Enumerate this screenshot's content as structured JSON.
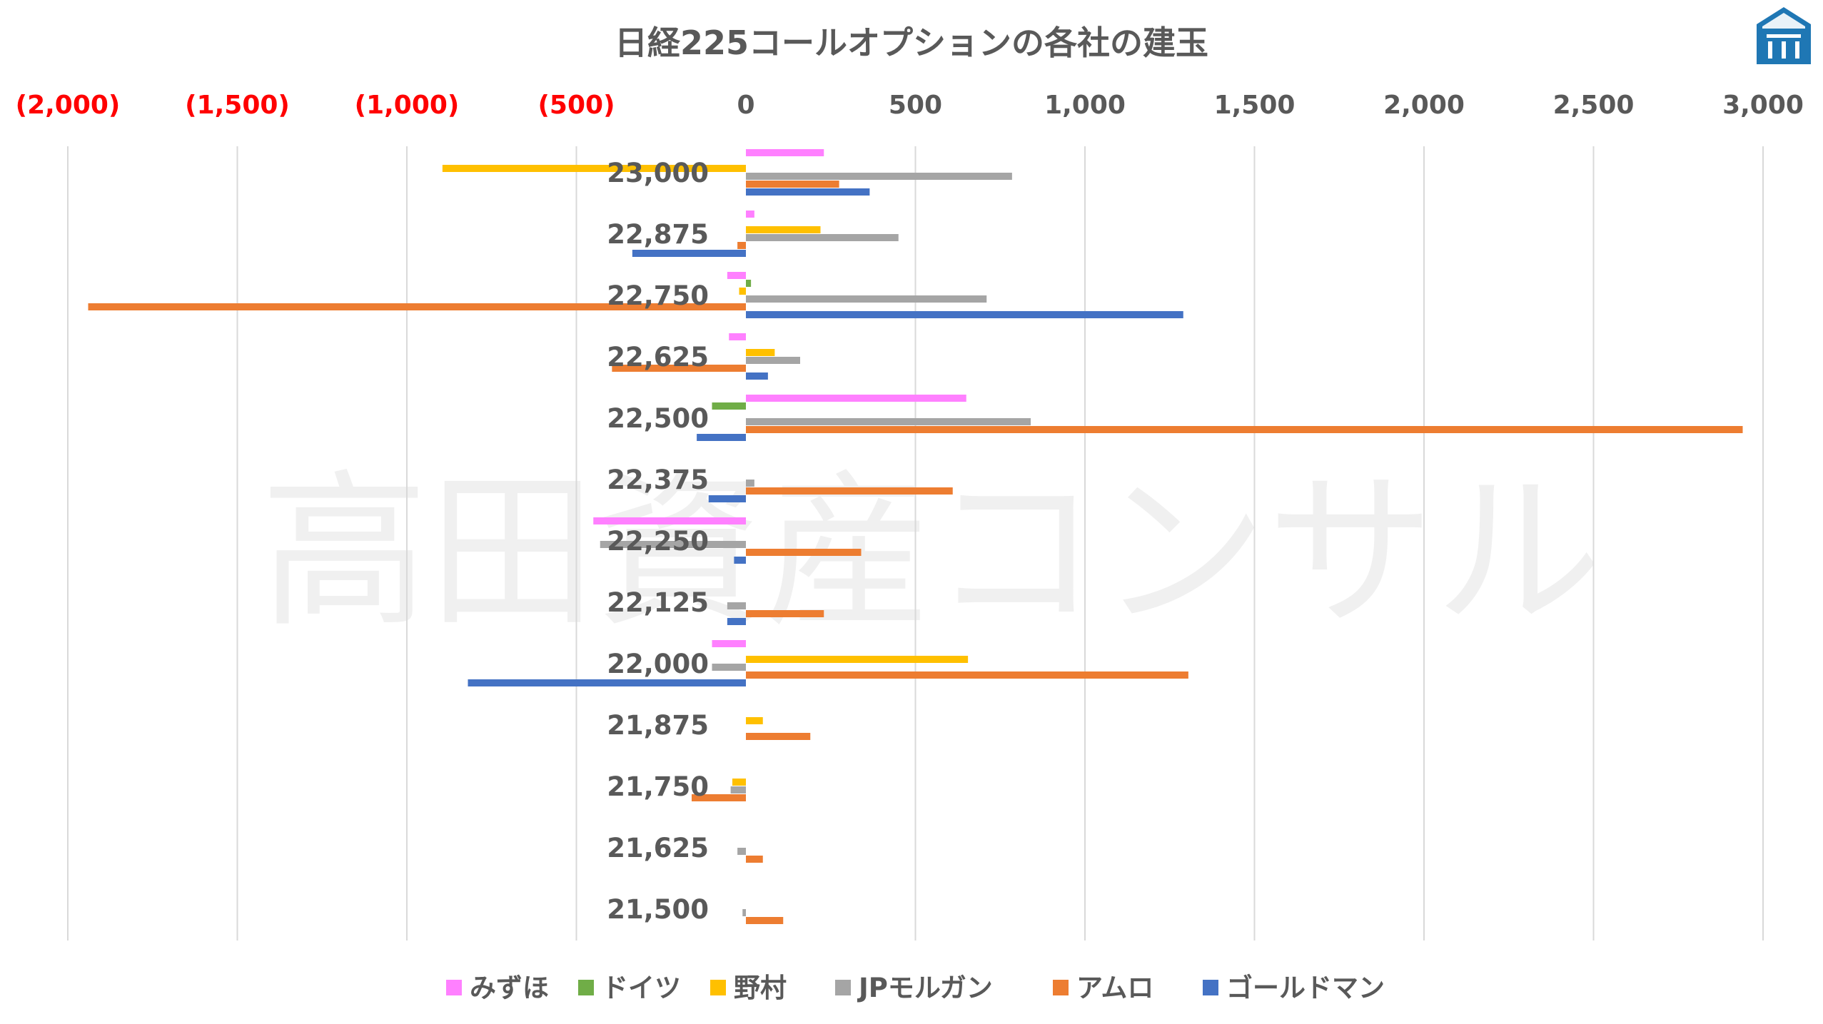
{
  "chart_data": {
    "type": "bar",
    "orientation": "horizontal",
    "title": "日経225コールオプションの各社の建玉",
    "watermark": "高田資産コンサル",
    "categories": [
      "23,000",
      "22,875",
      "22,750",
      "22,625",
      "22,500",
      "22,375",
      "22,250",
      "22,125",
      "22,000",
      "21,875",
      "21,750",
      "21,625",
      "21,500"
    ],
    "xlim": [
      -2000,
      3000
    ],
    "x_ticks": [
      {
        "value": -2000,
        "label": "(2,000)"
      },
      {
        "value": -1500,
        "label": "(1,500)"
      },
      {
        "value": -1000,
        "label": "(1,000)"
      },
      {
        "value": -500,
        "label": "(500)"
      },
      {
        "value": 0,
        "label": "0"
      },
      {
        "value": 500,
        "label": "500"
      },
      {
        "value": 1000,
        "label": "1,000"
      },
      {
        "value": 1500,
        "label": "1,500"
      },
      {
        "value": 2000,
        "label": "2,000"
      },
      {
        "value": 2500,
        "label": "2,500"
      },
      {
        "value": 3000,
        "label": "3,000"
      }
    ],
    "tick_colors": {
      "negative": "#ff0000",
      "positive": "#595959"
    },
    "grid": "vertical",
    "legend_position": "bottom",
    "series": [
      {
        "name": "みずほ",
        "color": "#ff80ff",
        "values": [
          230,
          25,
          -55,
          -50,
          650,
          0,
          -450,
          0,
          -100,
          0,
          0,
          0,
          0
        ]
      },
      {
        "name": "ドイツ",
        "color": "#70ad47",
        "values": [
          0,
          0,
          15,
          0,
          -100,
          0,
          0,
          0,
          0,
          0,
          0,
          0,
          0
        ]
      },
      {
        "name": "野村",
        "color": "#ffc000",
        "values": [
          -895,
          220,
          -20,
          85,
          0,
          0,
          0,
          0,
          655,
          50,
          -40,
          0,
          0
        ]
      },
      {
        "name": "JPモルガン",
        "color": "#a5a5a5",
        "values": [
          785,
          450,
          710,
          160,
          840,
          25,
          -430,
          -55,
          -100,
          0,
          -45,
          -25,
          -10
        ]
      },
      {
        "name": "アムロ",
        "color": "#ed7d31",
        "values": [
          275,
          -25,
          -1940,
          -395,
          2940,
          610,
          340,
          230,
          1305,
          190,
          -160,
          50,
          110
        ]
      },
      {
        "name": "ゴールドマン",
        "color": "#4472c4",
        "values": [
          365,
          -335,
          1290,
          65,
          -145,
          -110,
          -35,
          -55,
          -820,
          0,
          0,
          0,
          0
        ]
      }
    ]
  }
}
